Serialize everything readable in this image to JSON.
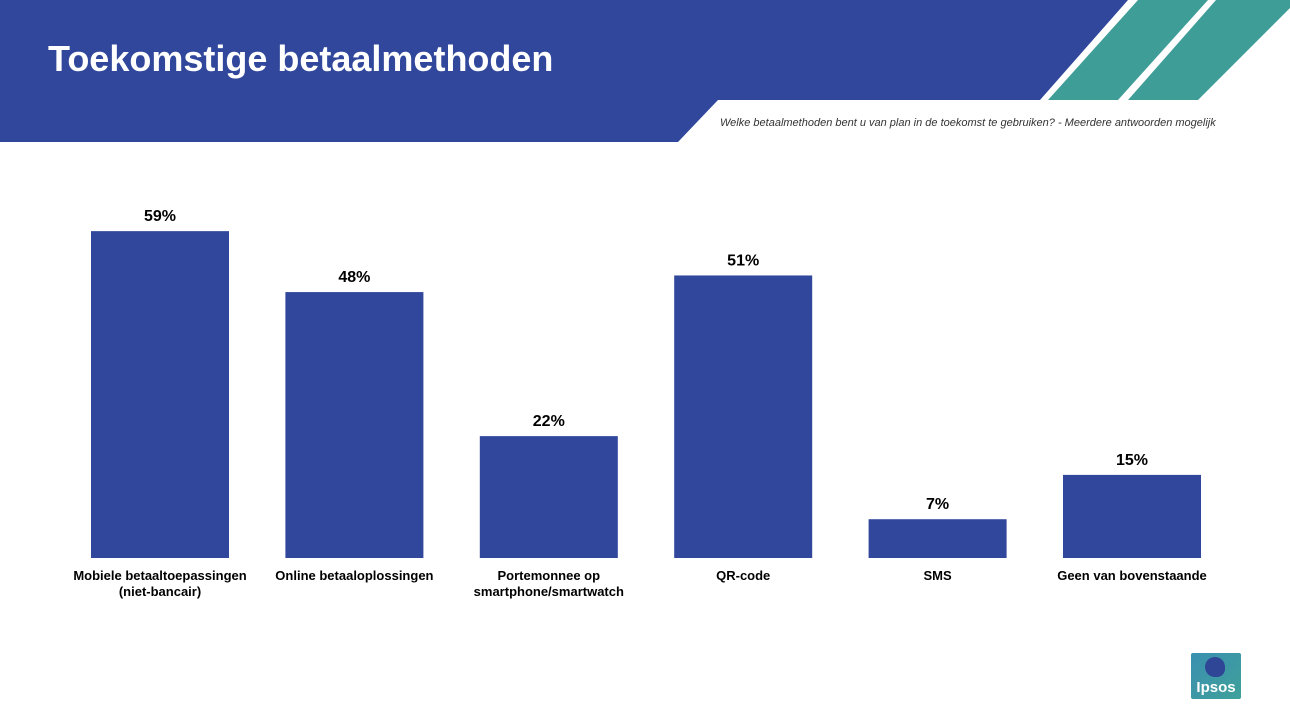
{
  "header": {
    "title": "Toekomstige betaalmethoden",
    "subtitle": "Welke betaalmethoden bent u van plan in de toekomst te gebruiken? - Meerdere antwoorden mogelijk"
  },
  "colors": {
    "brand_blue": "#30479c",
    "accent_teal": "#3f9d98",
    "bar": "#30479c"
  },
  "logo": {
    "text": "Ipsos"
  },
  "chart_data": {
    "type": "bar",
    "categories": [
      [
        "Mobiele betaaltoepassingen",
        "(niet-bancair)"
      ],
      [
        "Online betaaloplossingen"
      ],
      [
        "Portemonnee op",
        "smartphone/smartwatch"
      ],
      [
        "QR-code"
      ],
      [
        "SMS"
      ],
      [
        "Geen van bovenstaande"
      ]
    ],
    "values": [
      59,
      48,
      22,
      51,
      7,
      15
    ],
    "value_labels": [
      "59%",
      "48%",
      "22%",
      "51%",
      "7%",
      "15%"
    ],
    "ylim": [
      0,
      100
    ],
    "grid": false,
    "legend": "none"
  }
}
